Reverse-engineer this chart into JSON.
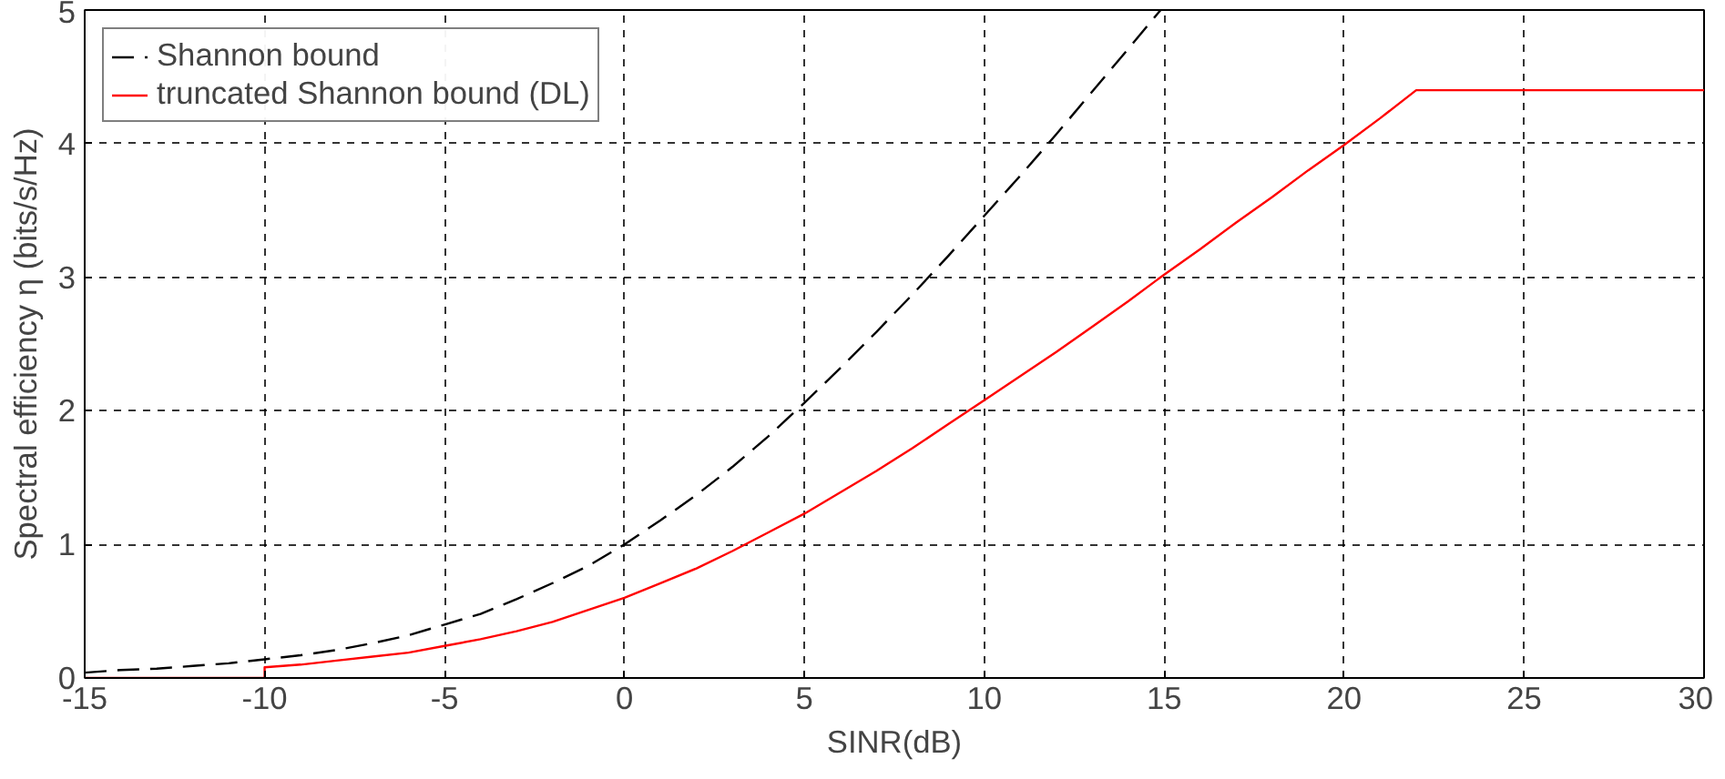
{
  "chart_data": {
    "type": "line",
    "xlabel": "SINR(dB)",
    "ylabel": "Spectral efficiency η (bits/s/Hz)",
    "xlim": [
      -15,
      30
    ],
    "ylim": [
      0,
      5
    ],
    "xticks": [
      -15,
      -10,
      -5,
      0,
      5,
      10,
      15,
      20,
      25,
      30
    ],
    "yticks": [
      0,
      1,
      2,
      3,
      4,
      5
    ],
    "grid": true,
    "legend": "top left",
    "series": [
      {
        "name": "Shannon bound",
        "color": "#000000",
        "line_style": "dashed",
        "x": [
          -15,
          -14,
          -13,
          -12,
          -11,
          -10,
          -9,
          -8,
          -7,
          -6,
          -5,
          -4,
          -3,
          -2,
          -1,
          0,
          1,
          2,
          3,
          4,
          5,
          6,
          7,
          8,
          9,
          10,
          11,
          12,
          13,
          14,
          14.9
        ],
        "values": [
          0.04,
          0.06,
          0.07,
          0.09,
          0.11,
          0.14,
          0.17,
          0.21,
          0.26,
          0.32,
          0.4,
          0.48,
          0.59,
          0.71,
          0.84,
          1.0,
          1.18,
          1.37,
          1.58,
          1.81,
          2.06,
          2.32,
          2.59,
          2.87,
          3.16,
          3.46,
          3.76,
          4.07,
          4.39,
          4.71,
          5.0
        ]
      },
      {
        "name": "truncated Shannon bound (DL)",
        "color": "#ff0000",
        "line_style": "solid",
        "x": [
          -15,
          -10,
          -10,
          -9,
          -8,
          -7,
          -6,
          -5,
          -4,
          -3,
          -2,
          -1,
          0,
          1,
          2,
          3,
          4,
          5,
          6,
          7,
          8,
          9,
          10,
          11,
          12,
          13,
          14,
          15,
          16,
          17,
          18,
          19,
          20,
          21,
          22,
          30
        ],
        "values": [
          0,
          0,
          0.08,
          0.1,
          0.13,
          0.16,
          0.19,
          0.24,
          0.29,
          0.35,
          0.42,
          0.51,
          0.6,
          0.71,
          0.82,
          0.95,
          1.09,
          1.23,
          1.39,
          1.55,
          1.72,
          1.9,
          2.08,
          2.26,
          2.44,
          2.63,
          2.82,
          3.02,
          3.21,
          3.41,
          3.6,
          3.8,
          3.99,
          4.19,
          4.4,
          4.4
        ]
      }
    ]
  }
}
